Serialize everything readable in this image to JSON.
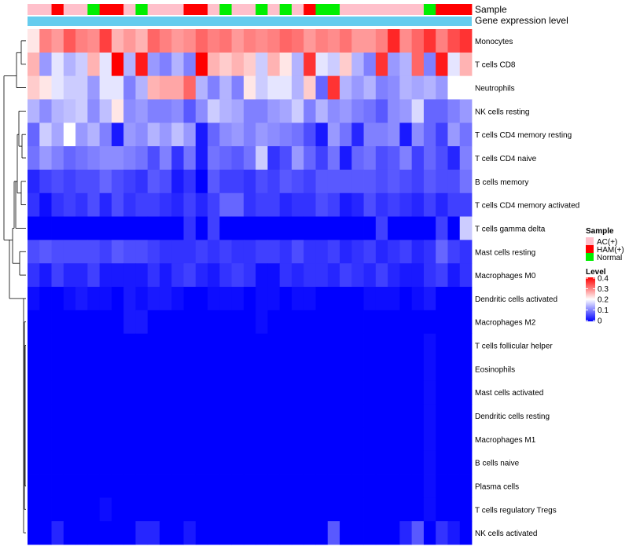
{
  "chart_data": {
    "type": "heatmap",
    "annotation_labels": {
      "sample": "Sample",
      "gene_expression": "Gene expression level"
    },
    "sample_groups": [
      "AC(+)",
      "AC(+)",
      "HAM(+)",
      "AC(+)",
      "AC(+)",
      "Normal",
      "HAM(+)",
      "HAM(+)",
      "AC(+)",
      "Normal",
      "AC(+)",
      "AC(+)",
      "AC(+)",
      "HAM(+)",
      "HAM(+)",
      "AC(+)",
      "Normal",
      "AC(+)",
      "AC(+)",
      "Normal",
      "AC(+)",
      "Normal",
      "AC(+)",
      "HAM(+)",
      "Normal",
      "Normal",
      "AC(+)",
      "AC(+)",
      "AC(+)",
      "AC(+)",
      "AC(+)",
      "AC(+)",
      "AC(+)",
      "Normal",
      "HAM(+)",
      "HAM(+)",
      "HAM(+)"
    ],
    "rows": [
      "Monocytes",
      "T cells CD8",
      "Neutrophils",
      "NK cells resting",
      "T cells CD4 memory resting",
      "T cells CD4 naive",
      "B cells memory",
      "T cells CD4 memory activated",
      "T cells gamma delta",
      "Mast cells resting",
      "Macrophages M0",
      "Dendritic cells activated",
      "Macrophages M2",
      "T cells follicular helper",
      "Eosinophils",
      "Mast cells activated",
      "Dendritic cells resting",
      "Macrophages M1",
      "B cells naive",
      "Plasma cells",
      "T cells regulatory  Tregs",
      "NK cells activated"
    ],
    "values": [
      [
        0.22,
        0.3,
        0.28,
        0.33,
        0.3,
        0.29,
        0.35,
        0.26,
        0.28,
        0.26,
        0.32,
        0.3,
        0.28,
        0.29,
        0.32,
        0.3,
        0.31,
        0.28,
        0.3,
        0.29,
        0.3,
        0.32,
        0.31,
        0.28,
        0.3,
        0.29,
        0.31,
        0.28,
        0.28,
        0.3,
        0.37,
        0.29,
        0.32,
        0.36,
        0.3,
        0.34,
        0.36
      ],
      [
        0.26,
        0.12,
        0.18,
        0.14,
        0.16,
        0.26,
        0.18,
        0.4,
        0.14,
        0.38,
        0.12,
        0.1,
        0.14,
        0.1,
        0.4,
        0.26,
        0.24,
        0.26,
        0.24,
        0.16,
        0.26,
        0.22,
        0.14,
        0.36,
        0.18,
        0.16,
        0.24,
        0.14,
        0.1,
        0.36,
        0.12,
        0.14,
        0.32,
        0.1,
        0.38,
        0.18,
        0.26
      ],
      [
        0.24,
        0.22,
        0.18,
        0.16,
        0.16,
        0.12,
        0.18,
        0.18,
        0.1,
        0.14,
        0.26,
        0.27,
        0.27,
        0.32,
        0.14,
        0.1,
        0.14,
        0.1,
        0.22,
        0.16,
        0.18,
        0.18,
        0.14,
        0.24,
        0.08,
        0.36,
        0.14,
        0.12,
        0.14,
        0.1,
        0.11,
        0.14,
        0.13,
        0.14,
        0.12,
        0.2,
        0.2
      ],
      [
        0.14,
        0.11,
        0.14,
        0.15,
        0.16,
        0.11,
        0.15,
        0.22,
        0.11,
        0.12,
        0.1,
        0.1,
        0.11,
        0.07,
        0.11,
        0.16,
        0.14,
        0.13,
        0.1,
        0.1,
        0.12,
        0.13,
        0.16,
        0.1,
        0.14,
        0.11,
        0.12,
        0.1,
        0.09,
        0.07,
        0.11,
        0.12,
        0.17,
        0.08,
        0.08,
        0.1,
        0.12
      ],
      [
        0.08,
        0.16,
        0.13,
        0.2,
        0.12,
        0.14,
        0.1,
        0.02,
        0.12,
        0.11,
        0.14,
        0.12,
        0.15,
        0.12,
        0.02,
        0.08,
        0.11,
        0.12,
        0.1,
        0.12,
        0.11,
        0.1,
        0.09,
        0.06,
        0.02,
        0.12,
        0.09,
        0.03,
        0.1,
        0.1,
        0.11,
        0.02,
        0.11,
        0.08,
        0.05,
        0.12,
        0.09
      ],
      [
        0.09,
        0.12,
        0.1,
        0.08,
        0.09,
        0.1,
        0.11,
        0.11,
        0.1,
        0.09,
        0.06,
        0.1,
        0.04,
        0.09,
        0.02,
        0.09,
        0.08,
        0.07,
        0.09,
        0.16,
        0.04,
        0.06,
        0.12,
        0.08,
        0.05,
        0.09,
        0.02,
        0.08,
        0.09,
        0.06,
        0.07,
        0.1,
        0.05,
        0.08,
        0.06,
        0.03,
        0.1
      ],
      [
        0.03,
        0.05,
        0.06,
        0.05,
        0.06,
        0.06,
        0.08,
        0.06,
        0.05,
        0.04,
        0.07,
        0.06,
        0.02,
        0.04,
        0.0,
        0.07,
        0.05,
        0.05,
        0.04,
        0.06,
        0.05,
        0.07,
        0.06,
        0.05,
        0.07,
        0.07,
        0.07,
        0.07,
        0.07,
        0.06,
        0.07,
        0.06,
        0.05,
        0.07,
        0.06,
        0.06,
        0.09
      ],
      [
        0.04,
        0.01,
        0.04,
        0.05,
        0.04,
        0.06,
        0.03,
        0.06,
        0.04,
        0.05,
        0.05,
        0.04,
        0.03,
        0.05,
        0.03,
        0.05,
        0.08,
        0.08,
        0.04,
        0.05,
        0.05,
        0.03,
        0.04,
        0.04,
        0.06,
        0.05,
        0.02,
        0.03,
        0.06,
        0.04,
        0.05,
        0.04,
        0.03,
        0.05,
        0.03,
        0.05,
        0.05
      ],
      [
        0.0,
        0.0,
        0.0,
        0.0,
        0.0,
        0.0,
        0.0,
        0.0,
        0.0,
        0.0,
        0.0,
        0.0,
        0.0,
        0.04,
        0.0,
        0.05,
        0.0,
        0.0,
        0.0,
        0.0,
        0.0,
        0.0,
        0.0,
        0.0,
        0.0,
        0.0,
        0.0,
        0.0,
        0.0,
        0.05,
        0.0,
        0.0,
        0.0,
        0.0,
        0.05,
        0.0,
        0.16
      ],
      [
        0.06,
        0.07,
        0.06,
        0.06,
        0.06,
        0.06,
        0.05,
        0.07,
        0.06,
        0.06,
        0.05,
        0.04,
        0.04,
        0.04,
        0.05,
        0.04,
        0.05,
        0.04,
        0.04,
        0.05,
        0.05,
        0.04,
        0.06,
        0.04,
        0.04,
        0.05,
        0.03,
        0.04,
        0.05,
        0.03,
        0.04,
        0.05,
        0.03,
        0.04,
        0.08,
        0.05,
        0.04
      ],
      [
        0.04,
        0.02,
        0.05,
        0.03,
        0.03,
        0.05,
        0.02,
        0.02,
        0.02,
        0.02,
        0.04,
        0.02,
        0.04,
        0.05,
        0.03,
        0.02,
        0.04,
        0.05,
        0.04,
        0.01,
        0.01,
        0.04,
        0.03,
        0.04,
        0.04,
        0.03,
        0.05,
        0.04,
        0.03,
        0.05,
        0.03,
        0.02,
        0.02,
        0.04,
        0.05,
        0.02,
        0.04
      ],
      [
        0.01,
        0.0,
        0.0,
        0.01,
        0.02,
        0.01,
        0.01,
        0.0,
        0.02,
        0.01,
        0.02,
        0.02,
        0.01,
        0.0,
        0.0,
        0.01,
        0.01,
        0.01,
        0.0,
        0.01,
        0.01,
        0.0,
        0.01,
        0.01,
        0.0,
        0.0,
        0.0,
        0.0,
        0.01,
        0.01,
        0.01,
        0.0,
        0.01,
        0.02,
        0.0,
        0.0,
        0.0
      ],
      [
        0.0,
        0.0,
        0.0,
        0.0,
        0.0,
        0.0,
        0.0,
        0.0,
        0.02,
        0.02,
        0.0,
        0.0,
        0.0,
        0.0,
        0.0,
        0.0,
        0.0,
        0.0,
        0.0,
        0.01,
        0.0,
        0.0,
        0.0,
        0.0,
        0.0,
        0.0,
        0.0,
        0.0,
        0.0,
        0.0,
        0.0,
        0.0,
        0.0,
        0.0,
        0.0,
        0.0,
        0.0
      ],
      [
        0.0,
        0.0,
        0.0,
        0.0,
        0.0,
        0.0,
        0.0,
        0.0,
        0.0,
        0.0,
        0.0,
        0.0,
        0.0,
        0.0,
        0.0,
        0.0,
        0.0,
        0.0,
        0.0,
        0.0,
        0.0,
        0.0,
        0.0,
        0.0,
        0.0,
        0.0,
        0.0,
        0.0,
        0.0,
        0.0,
        0.0,
        0.0,
        0.0,
        0.01,
        0.0,
        0.0,
        0.0
      ],
      [
        0.0,
        0.0,
        0.0,
        0.0,
        0.0,
        0.0,
        0.0,
        0.0,
        0.0,
        0.0,
        0.0,
        0.0,
        0.0,
        0.0,
        0.0,
        0.0,
        0.0,
        0.0,
        0.0,
        0.0,
        0.0,
        0.0,
        0.0,
        0.0,
        0.0,
        0.0,
        0.0,
        0.0,
        0.0,
        0.0,
        0.0,
        0.0,
        0.0,
        0.01,
        0.0,
        0.0,
        0.0
      ],
      [
        0.0,
        0.0,
        0.0,
        0.0,
        0.0,
        0.0,
        0.0,
        0.0,
        0.0,
        0.0,
        0.0,
        0.0,
        0.0,
        0.0,
        0.0,
        0.0,
        0.0,
        0.0,
        0.0,
        0.0,
        0.0,
        0.0,
        0.0,
        0.0,
        0.0,
        0.0,
        0.0,
        0.0,
        0.0,
        0.0,
        0.0,
        0.0,
        0.0,
        0.01,
        0.0,
        0.0,
        0.0
      ],
      [
        0.0,
        0.0,
        0.0,
        0.0,
        0.0,
        0.0,
        0.0,
        0.0,
        0.0,
        0.0,
        0.0,
        0.0,
        0.0,
        0.0,
        0.0,
        0.0,
        0.0,
        0.0,
        0.0,
        0.0,
        0.0,
        0.0,
        0.0,
        0.0,
        0.0,
        0.0,
        0.0,
        0.0,
        0.0,
        0.0,
        0.0,
        0.0,
        0.0,
        0.01,
        0.0,
        0.0,
        0.0
      ],
      [
        0.0,
        0.0,
        0.0,
        0.0,
        0.0,
        0.0,
        0.0,
        0.0,
        0.0,
        0.0,
        0.0,
        0.0,
        0.0,
        0.0,
        0.0,
        0.0,
        0.0,
        0.0,
        0.0,
        0.0,
        0.0,
        0.0,
        0.0,
        0.0,
        0.0,
        0.0,
        0.0,
        0.0,
        0.0,
        0.0,
        0.0,
        0.0,
        0.0,
        0.01,
        0.0,
        0.0,
        0.0
      ],
      [
        0.0,
        0.0,
        0.0,
        0.0,
        0.0,
        0.0,
        0.0,
        0.0,
        0.0,
        0.0,
        0.0,
        0.0,
        0.0,
        0.0,
        0.0,
        0.0,
        0.0,
        0.0,
        0.0,
        0.0,
        0.0,
        0.0,
        0.0,
        0.0,
        0.0,
        0.0,
        0.0,
        0.0,
        0.0,
        0.0,
        0.0,
        0.0,
        0.0,
        0.01,
        0.0,
        0.0,
        0.0
      ],
      [
        0.0,
        0.0,
        0.0,
        0.0,
        0.0,
        0.0,
        0.0,
        0.0,
        0.0,
        0.0,
        0.0,
        0.0,
        0.0,
        0.0,
        0.0,
        0.0,
        0.0,
        0.0,
        0.0,
        0.0,
        0.0,
        0.0,
        0.0,
        0.0,
        0.0,
        0.0,
        0.0,
        0.0,
        0.0,
        0.0,
        0.0,
        0.0,
        0.0,
        0.01,
        0.0,
        0.0,
        0.0
      ],
      [
        0.0,
        0.0,
        0.0,
        0.0,
        0.0,
        0.0,
        0.01,
        0.0,
        0.0,
        0.0,
        0.0,
        0.0,
        0.0,
        0.0,
        0.0,
        0.0,
        0.0,
        0.0,
        0.0,
        0.0,
        0.0,
        0.0,
        0.0,
        0.0,
        0.0,
        0.0,
        0.0,
        0.0,
        0.0,
        0.0,
        0.0,
        0.0,
        0.0,
        0.01,
        0.0,
        0.0,
        0.0
      ],
      [
        0.0,
        0.0,
        0.03,
        0.0,
        0.0,
        0.0,
        0.0,
        0.0,
        0.0,
        0.03,
        0.03,
        0.0,
        0.0,
        0.02,
        0.0,
        0.0,
        0.0,
        0.0,
        0.0,
        0.0,
        0.0,
        0.0,
        0.0,
        0.0,
        0.0,
        0.07,
        0.0,
        0.0,
        0.0,
        0.0,
        0.0,
        0.03,
        0.07,
        0.0,
        0.04,
        0.02,
        0.0
      ]
    ],
    "legend": {
      "sample_title": "Sample",
      "sample_entries": [
        {
          "label": "AC(+)",
          "color": "#FFC0CB"
        },
        {
          "label": "HAM(+)",
          "color": "#FF0000"
        },
        {
          "label": "Normal",
          "color": "#00EE00"
        }
      ],
      "level_title": "Level",
      "level_ticks": [
        "0.4",
        "0.3",
        "0.2",
        "0.1",
        "0"
      ],
      "level_range": [
        0,
        0.4
      ]
    },
    "colors": {
      "low": "#0000FF",
      "mid": "#FFFFFF",
      "high": "#FF0000",
      "gene_expression_bar": "#66CCEE"
    }
  }
}
